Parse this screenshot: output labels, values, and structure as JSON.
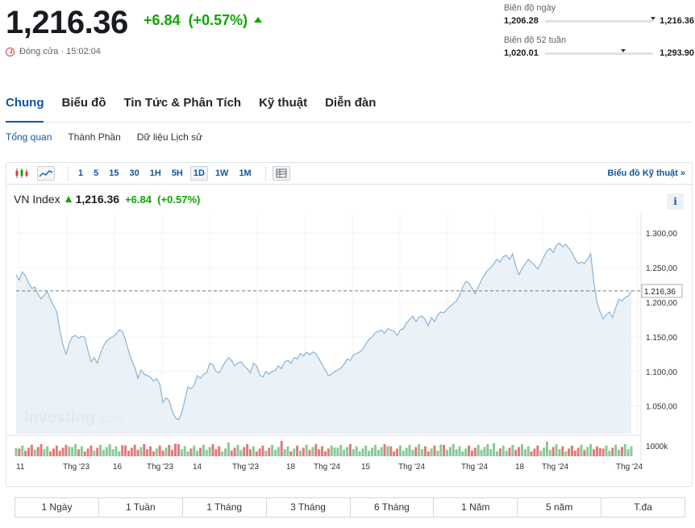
{
  "quote": {
    "price": "1,216.36",
    "change": "+6.84",
    "change_pct": "(+0.57%)",
    "status": "Đóng cửa · 15:02:04"
  },
  "ranges": {
    "day_label": "Biên độ ngày",
    "day_low": "1,206.28",
    "day_high": "1,216.36",
    "day_marker_pct": 1.0,
    "week52_label": "Biên độ 52 tuần",
    "week52_low": "1,020.01",
    "week52_high": "1,293.90",
    "week52_marker_pct": 0.72
  },
  "tabs": [
    "Chung",
    "Biểu đồ",
    "Tin Tức & Phân Tích",
    "Kỹ thuật",
    "Diễn đàn"
  ],
  "subtabs": [
    "Tổng quan",
    "Thành Phần",
    "Dữ liệu Lịch sử"
  ],
  "toolbar": {
    "intervals": [
      "1",
      "5",
      "15",
      "30",
      "1H",
      "5H",
      "1D",
      "1W",
      "1M"
    ],
    "selected_interval": "1D",
    "tech_link": "Biểu đồ Kỹ thuật »"
  },
  "chart_header": {
    "name": "VN Index",
    "price": "1,216.36",
    "change": "+6.84",
    "change_pct": "(+0.57%)",
    "info": "i"
  },
  "chart_data": {
    "type": "area",
    "y_ticks": [
      "1.300,00",
      "1.250,00",
      "1.200,00",
      "1.150,00",
      "1.100,00",
      "1.050,00"
    ],
    "y_tick_values": [
      1300,
      1250,
      1200,
      1150,
      1100,
      1050
    ],
    "ylim": [
      1010,
      1320
    ],
    "last_value": 1216.36,
    "last_label": "1.216,36",
    "volume_label": "1000k",
    "x_labels": [
      "11",
      "Thg '23",
      "16",
      "Thg '23",
      "14",
      "Thg '23",
      "18",
      "Thg '24",
      "15",
      "Thg '24",
      "Thg '24",
      "18",
      "Thg '24",
      "Thg '24"
    ],
    "watermark_main": "Investing",
    "watermark_sub": ".com",
    "values": [
      1240,
      1232,
      1244,
      1238,
      1228,
      1220,
      1222,
      1212,
      1205,
      1210,
      1216,
      1204,
      1195,
      1186,
      1160,
      1138,
      1125,
      1140,
      1150,
      1152,
      1148,
      1151,
      1149,
      1130,
      1114,
      1120,
      1112,
      1126,
      1137,
      1144,
      1148,
      1150,
      1154,
      1160,
      1158,
      1146,
      1130,
      1116,
      1106,
      1090,
      1102,
      1096,
      1094,
      1092,
      1086,
      1090,
      1082,
      1055,
      1062,
      1058,
      1042,
      1033,
      1030,
      1040,
      1058,
      1078,
      1075,
      1080,
      1094,
      1090,
      1096,
      1098,
      1112,
      1110,
      1100,
      1098,
      1106,
      1114,
      1120,
      1116,
      1108,
      1112,
      1114,
      1108,
      1104,
      1098,
      1112,
      1108,
      1095,
      1092,
      1100,
      1096,
      1100,
      1102,
      1108,
      1104,
      1114,
      1116,
      1112,
      1120,
      1118,
      1126,
      1122,
      1128,
      1124,
      1128,
      1126,
      1118,
      1110,
      1102,
      1094,
      1096,
      1100,
      1102,
      1105,
      1110,
      1118,
      1116,
      1124,
      1126,
      1128,
      1132,
      1140,
      1146,
      1150,
      1156,
      1158,
      1160,
      1155,
      1162,
      1160,
      1158,
      1152,
      1160,
      1162,
      1170,
      1175,
      1180,
      1172,
      1178,
      1180,
      1175,
      1166,
      1178,
      1172,
      1182,
      1186,
      1185,
      1190,
      1194,
      1198,
      1202,
      1210,
      1222,
      1230,
      1228,
      1220,
      1212,
      1222,
      1232,
      1240,
      1246,
      1250,
      1256,
      1262,
      1258,
      1266,
      1268,
      1262,
      1270,
      1252,
      1240,
      1248,
      1256,
      1262,
      1258,
      1254,
      1248,
      1256,
      1266,
      1274,
      1278,
      1272,
      1282,
      1286,
      1280,
      1284,
      1278,
      1272,
      1262,
      1256,
      1258,
      1256,
      1263,
      1270,
      1230,
      1200,
      1186,
      1176,
      1182,
      1186,
      1178,
      1192,
      1204,
      1202,
      1207,
      1209,
      1216
    ]
  },
  "periods": [
    "1 Ngày",
    "1 Tuần",
    "1 Tháng",
    "3 Tháng",
    "6 Tháng",
    "1 Năm",
    "5 năm",
    "T.đa"
  ],
  "colors": {
    "up": "#0ea600",
    "down": "#dd3c3c",
    "link": "#1256a0",
    "line": "#8bb3d6",
    "area": "#e6eef6"
  }
}
